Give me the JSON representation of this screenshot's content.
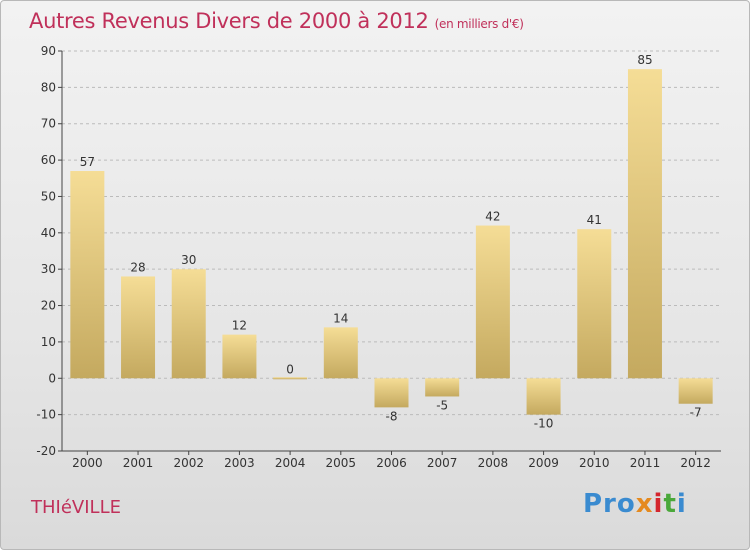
{
  "title": "Autres Revenus Divers de 2000 à 2012",
  "unit": "(en milliers d'€)",
  "place": "THIéVILLE",
  "logo": [
    "Pro",
    "x",
    "i",
    "t",
    "i"
  ],
  "colors": {
    "title": "#c0305a",
    "bar_light": "#f5dd96",
    "bar_dark": "#c4a95f",
    "axis": "#444444",
    "grid": "#bbbbbb"
  },
  "chart_data": {
    "type": "bar",
    "categories": [
      "2000",
      "2001",
      "2002",
      "2003",
      "2004",
      "2005",
      "2006",
      "2007",
      "2008",
      "2009",
      "2010",
      "2011",
      "2012"
    ],
    "values": [
      57,
      28,
      30,
      12,
      0,
      14,
      -8,
      -5,
      42,
      -10,
      41,
      85,
      -7
    ],
    "value_labels": [
      "57",
      "28",
      "30",
      "12",
      "0",
      "14",
      "-8",
      "-5",
      "42",
      "-10",
      "41",
      "85",
      "-7"
    ],
    "ylim": [
      -20,
      90
    ],
    "yticks": [
      -20,
      -10,
      0,
      10,
      20,
      30,
      40,
      50,
      60,
      70,
      80,
      90
    ],
    "grid": "horizontal dashed",
    "legend": "none"
  }
}
